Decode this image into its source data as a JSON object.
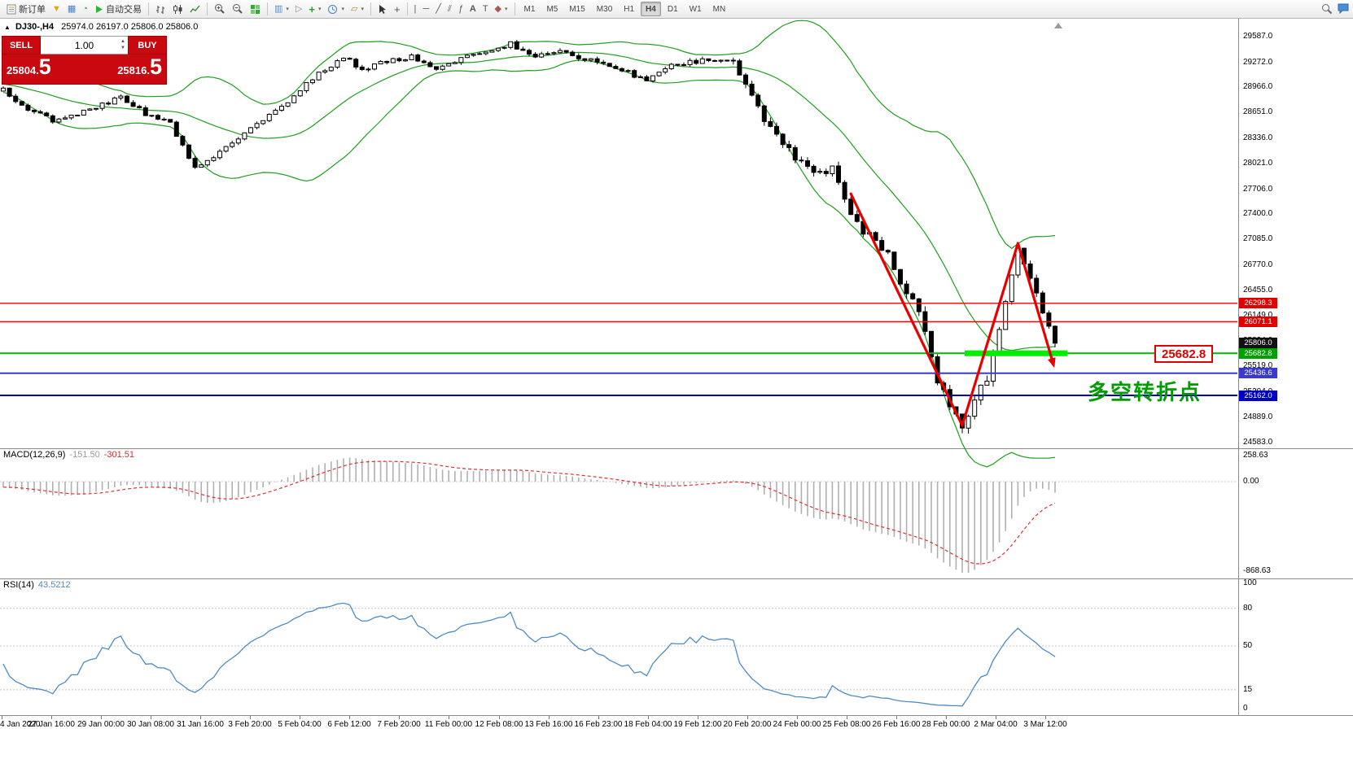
{
  "toolbar": {
    "new_order": "新订单",
    "auto_trading": "自动交易",
    "timeframes": [
      "M1",
      "M5",
      "M15",
      "M30",
      "H1",
      "H4",
      "D1",
      "W1",
      "MN"
    ],
    "active_timeframe": "H4"
  },
  "chart": {
    "symbol_header": "DJ30-,H4",
    "ohlc_text": "25974.0 26197.0 25806.0 25806.0",
    "trade_panel": {
      "sell_label": "SELL",
      "buy_label": "BUY",
      "volume": "1.00",
      "sell_price": "25804.",
      "sell_price_big": "5",
      "buy_price": "25816.",
      "buy_price_big": "5"
    },
    "annotation_text": "多空转折点",
    "price_callout": "25682.8",
    "current_price": "25806.0",
    "current_price_color": "#111111",
    "axis_labels": [
      "29587.0",
      "29272.0",
      "28966.0",
      "28651.0",
      "28336.0",
      "28021.0",
      "27706.0",
      "27400.0",
      "27085.0",
      "26770.0",
      "26455.0",
      "26149.0",
      "25834.0",
      "25519.0",
      "25204.0",
      "24889.0",
      "24583.0"
    ],
    "time_labels": [
      "4 Jan 2020",
      "27 Jan 16:00",
      "29 Jan 00:00",
      "30 Jan 08:00",
      "31 Jan 16:00",
      "3 Feb 20:00",
      "5 Feb 04:00",
      "6 Feb 12:00",
      "7 Feb 20:00",
      "11 Feb 00:00",
      "12 Feb 08:00",
      "13 Feb 16:00",
      "16 Feb 23:00",
      "18 Feb 04:00",
      "19 Feb 12:00",
      "20 Feb 20:00",
      "24 Feb 00:00",
      "25 Feb 08:00",
      "26 Feb 16:00",
      "28 Feb 00:00",
      "2 Mar 04:00",
      "3 Mar 12:00"
    ]
  },
  "macd": {
    "label": "MACD(12,26,9)",
    "value_main": "-151.50",
    "value_signal": "-301.51",
    "scale": [
      "258.63",
      "0.00",
      "-868.63"
    ]
  },
  "rsi": {
    "label": "RSI(14)",
    "value": "43.5212",
    "scale": [
      "100",
      "80",
      "50",
      "15",
      "0"
    ]
  },
  "chart_data": {
    "type": "candlestick",
    "symbol": "DJ30-",
    "timeframe": "H4",
    "title": "DJ30-,H4 25974.0 26197.0 25806.0 25806.0",
    "price_axis_range": [
      24540,
      29760
    ],
    "candle_count": 171,
    "price_path_anchors": [
      [
        0,
        28930
      ],
      [
        4,
        28700
      ],
      [
        8,
        28560
      ],
      [
        13,
        28660
      ],
      [
        19,
        28840
      ],
      [
        23,
        28640
      ],
      [
        27,
        28520
      ],
      [
        31,
        27950
      ],
      [
        33,
        28060
      ],
      [
        36,
        28230
      ],
      [
        40,
        28450
      ],
      [
        45,
        28720
      ],
      [
        50,
        29080
      ],
      [
        55,
        29330
      ],
      [
        58,
        29190
      ],
      [
        62,
        29290
      ],
      [
        66,
        29340
      ],
      [
        70,
        29190
      ],
      [
        75,
        29340
      ],
      [
        82,
        29500
      ],
      [
        86,
        29340
      ],
      [
        90,
        29400
      ],
      [
        95,
        29290
      ],
      [
        100,
        29190
      ],
      [
        104,
        29040
      ],
      [
        108,
        29240
      ],
      [
        113,
        29290
      ],
      [
        118,
        29280
      ],
      [
        120,
        28980
      ],
      [
        123,
        28580
      ],
      [
        126,
        28280
      ],
      [
        129,
        28030
      ],
      [
        132,
        27900
      ],
      [
        134,
        27960
      ],
      [
        137,
        27380
      ],
      [
        139,
        27180
      ],
      [
        141,
        27090
      ],
      [
        143,
        26890
      ],
      [
        145,
        26570
      ],
      [
        148,
        26230
      ],
      [
        151,
        25380
      ],
      [
        153,
        25020
      ],
      [
        155,
        24760
      ],
      [
        157,
        25160
      ],
      [
        159,
        25320
      ],
      [
        162,
        26350
      ],
      [
        164,
        26980
      ],
      [
        166,
        26600
      ],
      [
        168,
        26150
      ],
      [
        170,
        25806
      ]
    ],
    "levels": [
      {
        "price": 26298.3,
        "color": "#f20000",
        "width": 1.4,
        "badge": "26298.3",
        "badge_color": "#e00000"
      },
      {
        "price": 26071.1,
        "color": "#f20000",
        "width": 1.4,
        "badge": "26071.1",
        "badge_color": "#e00000"
      },
      {
        "price": 25682.8,
        "color": "#00b800",
        "width": 2,
        "badge": "25682.8",
        "badge_color": "#00a000"
      },
      {
        "price": 25436.6,
        "color": "#3a3ad0",
        "width": 2,
        "badge": "25436.6",
        "badge_color": "#3a3ad0"
      },
      {
        "price": 25162.0,
        "color": "#0000c0",
        "width": 2,
        "badge": "25162.0",
        "badge_color": "#0000c0"
      }
    ],
    "highlight_segment": {
      "from_index": 155.4,
      "to_index": 172,
      "price": 25682.8,
      "color": "#00ee00"
    },
    "trend_polyline": [
      [
        137,
        27650
      ],
      [
        155,
        24790
      ],
      [
        164,
        27040
      ],
      [
        169.6,
        25580
      ]
    ],
    "indicators": {
      "bollinger": {
        "period": 20,
        "deviation": 2,
        "color": "#1e9e1e"
      },
      "macd": {
        "fast": 12,
        "slow": 26,
        "signal": 9,
        "hist_color": "#b0b0b0",
        "signal_color": "#e03030"
      },
      "rsi": {
        "period": 14,
        "color": "#4e8bc4",
        "levels": [
          80,
          50,
          15
        ]
      }
    }
  }
}
